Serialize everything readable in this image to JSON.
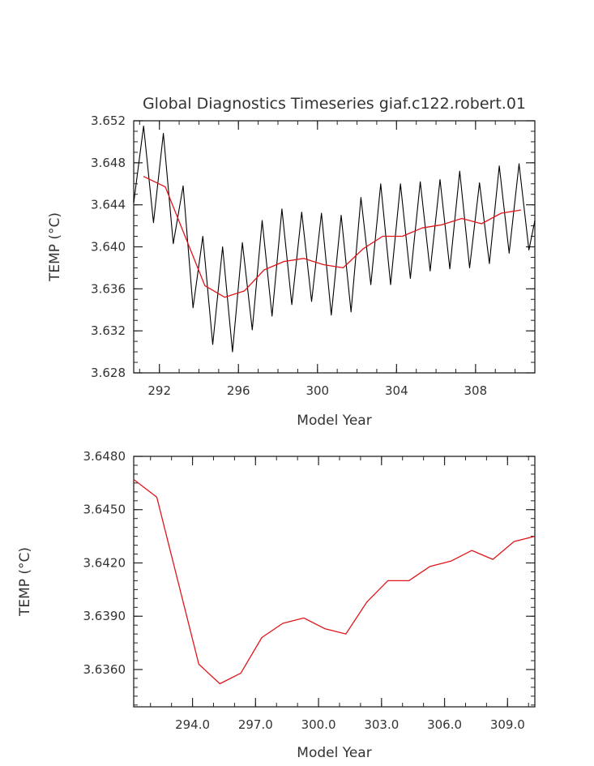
{
  "chart_data": [
    {
      "type": "line",
      "title": "Global Diagnostics Timeseries giaf.c122.robert.01",
      "xlabel": "Model Year",
      "ylabel": "TEMP (°C)",
      "xlim": [
        290.7,
        311.0
      ],
      "ylim": [
        3.628,
        3.652
      ],
      "x_ticks": [
        "292",
        "296",
        "300",
        "304",
        "308"
      ],
      "x_tick_values": [
        292,
        296,
        300,
        304,
        308
      ],
      "y_ticks": [
        "3.628",
        "3.632",
        "3.636",
        "3.640",
        "3.644",
        "3.648",
        "3.652"
      ],
      "y_tick_values": [
        3.628,
        3.632,
        3.636,
        3.64,
        3.644,
        3.648,
        3.652
      ],
      "series": [
        {
          "color": "#000000",
          "x": [
            290.7,
            291.2,
            291.7,
            292.2,
            292.7,
            293.2,
            293.7,
            294.2,
            294.7,
            295.2,
            295.7,
            296.2,
            296.7,
            297.2,
            297.7,
            298.2,
            298.7,
            299.2,
            299.7,
            300.2,
            300.7,
            301.2,
            301.7,
            302.2,
            302.7,
            303.2,
            303.7,
            304.2,
            304.7,
            305.2,
            305.7,
            306.2,
            306.7,
            307.2,
            307.7,
            308.2,
            308.7,
            309.2,
            309.7,
            310.2,
            310.7,
            311.0
          ],
          "values": [
            3.6442,
            3.6515,
            3.6423,
            3.6508,
            3.6403,
            3.6458,
            3.6342,
            3.641,
            3.6307,
            3.64,
            3.63,
            3.6404,
            3.6321,
            3.6425,
            3.6334,
            3.6436,
            3.6345,
            3.6433,
            3.6348,
            3.6432,
            3.6335,
            3.643,
            3.6338,
            3.6447,
            3.6364,
            3.646,
            3.6364,
            3.646,
            3.637,
            3.6462,
            3.6377,
            3.6464,
            3.6379,
            3.6472,
            3.638,
            3.6461,
            3.6384,
            3.6477,
            3.6394,
            3.6479,
            3.6397,
            3.6425
          ]
        },
        {
          "color": "#e0151a",
          "x": [
            291.2,
            292.3,
            293.3,
            294.3,
            295.3,
            296.3,
            297.3,
            298.3,
            299.3,
            300.3,
            301.3,
            302.3,
            303.3,
            304.3,
            305.3,
            306.3,
            307.3,
            308.3,
            309.3,
            310.3
          ],
          "values": [
            3.6467,
            3.6457,
            3.641,
            3.6363,
            3.6352,
            3.6358,
            3.6378,
            3.6386,
            3.6389,
            3.6383,
            3.638,
            3.6398,
            3.641,
            3.641,
            3.6418,
            3.6421,
            3.6427,
            3.6422,
            3.6432,
            3.6435
          ]
        }
      ]
    },
    {
      "type": "line",
      "title": "",
      "xlabel": "Model Year",
      "ylabel": "TEMP (°C)",
      "xlim": [
        291.2,
        310.3
      ],
      "ylim": [
        3.6339,
        3.648
      ],
      "x_ticks": [
        "294.0",
        "297.0",
        "300.0",
        "303.0",
        "306.0",
        "309.0"
      ],
      "x_tick_values": [
        294,
        297,
        300,
        303,
        306,
        309
      ],
      "y_ticks": [
        "3.6360",
        "3.6390",
        "3.6420",
        "3.6450",
        "3.6480"
      ],
      "y_tick_values": [
        3.636,
        3.639,
        3.642,
        3.645,
        3.648
      ],
      "series": [
        {
          "color": "#e0151a",
          "x": [
            291.2,
            292.3,
            293.3,
            294.3,
            295.3,
            296.3,
            297.3,
            298.3,
            299.3,
            300.3,
            301.3,
            302.3,
            303.3,
            304.3,
            305.3,
            306.3,
            307.3,
            308.3,
            309.3,
            310.3
          ],
          "values": [
            3.6467,
            3.6457,
            3.641,
            3.6363,
            3.6352,
            3.6358,
            3.6378,
            3.6386,
            3.6389,
            3.6383,
            3.638,
            3.6398,
            3.641,
            3.641,
            3.6418,
            3.6421,
            3.6427,
            3.6422,
            3.6432,
            3.6435
          ]
        }
      ]
    }
  ]
}
